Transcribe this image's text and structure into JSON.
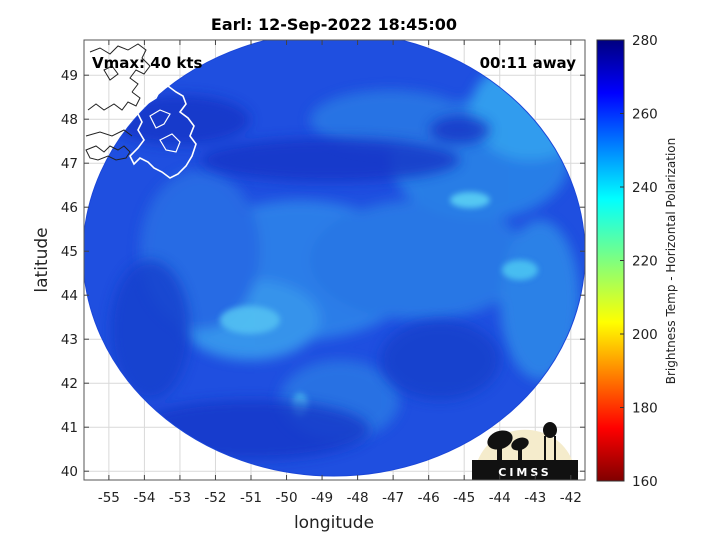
{
  "title": "Earl: 12-Sep-2022 18:45:00",
  "annotations": {
    "vmax": "Vmax: 40 kts",
    "time_away": "00:11 away"
  },
  "axes": {
    "xlabel": "longitude",
    "ylabel": "latitude",
    "x_ticks": [
      -55,
      -54,
      -53,
      -52,
      -51,
      -50,
      -49,
      -48,
      -47,
      -46,
      -45,
      -44,
      -43,
      -42
    ],
    "y_ticks": [
      40,
      41,
      42,
      43,
      44,
      45,
      46,
      47,
      48,
      49
    ],
    "xlim": [
      -55.7,
      -41.6
    ],
    "ylim": [
      39.8,
      49.8
    ],
    "grid": true
  },
  "colorbar": {
    "label": "Brightness Temp - Horizontal Polarization",
    "ticks": [
      160,
      180,
      200,
      220,
      240,
      260,
      280
    ],
    "range": [
      160,
      280
    ],
    "colormap": "jet"
  },
  "logo": {
    "text": "CIMSS"
  },
  "colors": {
    "swath_base": "#1f4fe0",
    "swath_cold": "#1034c8",
    "swath_warm": "#3aa8f0",
    "coastline": "#ffffff"
  }
}
